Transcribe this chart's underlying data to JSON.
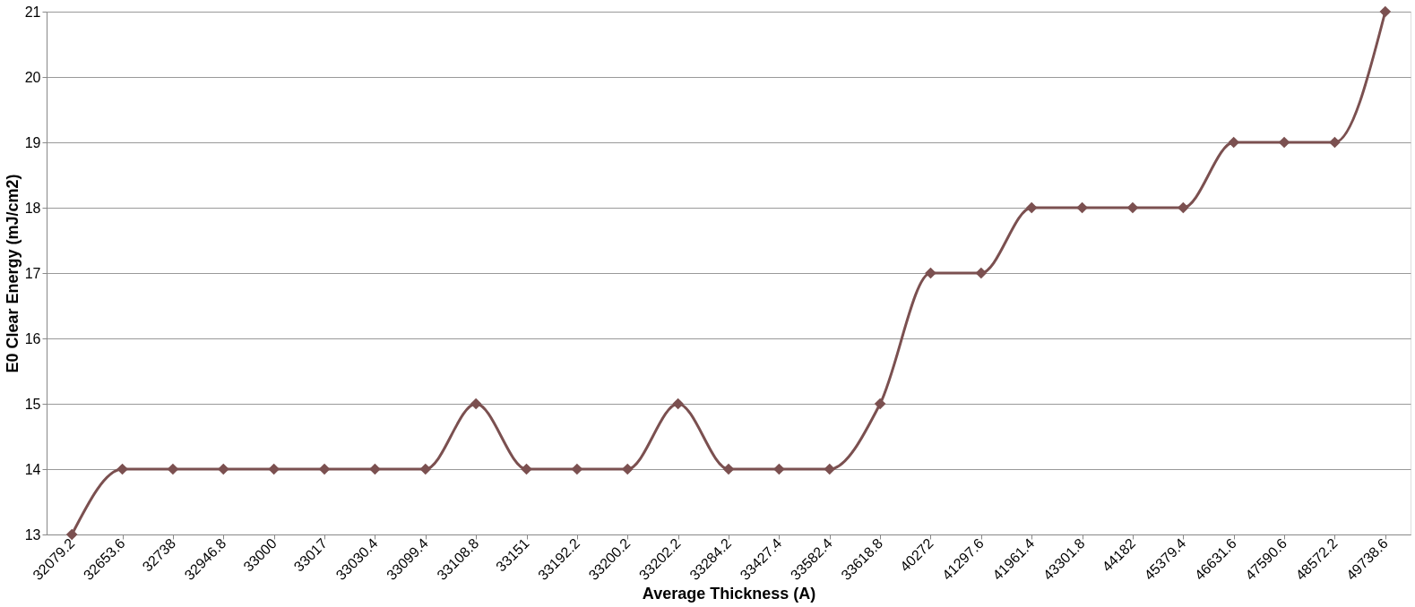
{
  "chart_data": {
    "type": "line",
    "xlabel": "Average Thickness (A)",
    "ylabel": "E0 Clear Energy (mJ/cm2)",
    "categories": [
      "32079.2",
      "32653.6",
      "32738",
      "32946.8",
      "33000",
      "33017",
      "33030.4",
      "33099.4",
      "33108.8",
      "33151",
      "33192.2",
      "33200.2",
      "33202.2",
      "33284.2",
      "33427.4",
      "33582.4",
      "33618.8",
      "40272",
      "41297.6",
      "41961.4",
      "43301.8",
      "44182",
      "45379.4",
      "46631.6",
      "47590.6",
      "48572.2",
      "49738.6"
    ],
    "series": [
      {
        "color": "#7b5050",
        "values": [
          13,
          14,
          14,
          14,
          14,
          14,
          14,
          14,
          15,
          14,
          14,
          14,
          15,
          14,
          14,
          14,
          15,
          17,
          17,
          18,
          18,
          18,
          18,
          19,
          19,
          19,
          21
        ]
      }
    ],
    "ylim": [
      13,
      21
    ],
    "yticks": [
      13,
      14,
      15,
      16,
      17,
      18,
      19,
      20,
      21
    ],
    "grid": "y",
    "marker": "diamond",
    "line_style": "solid",
    "legend": false
  }
}
